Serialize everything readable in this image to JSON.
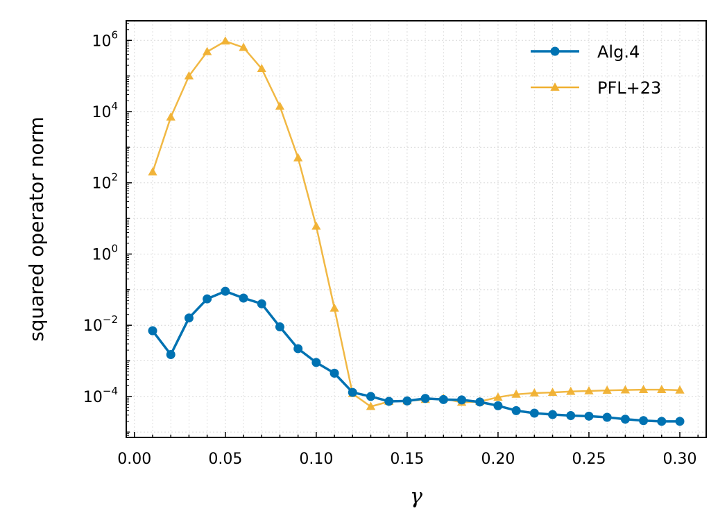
{
  "chart_data": {
    "type": "line",
    "title": "",
    "xlabel": "γ",
    "ylabel": "squared operator norm",
    "xlim": [
      -0.0045,
      0.3145
    ],
    "ylim_log10": [
      -5.15,
      6.55
    ],
    "yscale": "log",
    "x_ticks": [
      0.0,
      0.05,
      0.1,
      0.15,
      0.2,
      0.25,
      0.3
    ],
    "x_tick_labels": [
      "0.00",
      "0.05",
      "0.10",
      "0.15",
      "0.20",
      "0.25",
      "0.30"
    ],
    "y_tick_exponents": [
      -4,
      -2,
      0,
      2,
      4,
      6
    ],
    "y_tick_base": "10",
    "y_tick_exp_labels": [
      "−4",
      "−2",
      "0",
      "2",
      "4",
      "6"
    ],
    "grid": true,
    "legend_position": "top-right",
    "x": [
      0.01,
      0.02,
      0.03,
      0.04,
      0.05,
      0.06,
      0.07,
      0.08,
      0.09,
      0.1,
      0.11,
      0.12,
      0.13,
      0.14,
      0.15,
      0.16,
      0.17,
      0.18,
      0.19,
      0.2,
      0.21,
      0.22,
      0.23,
      0.24,
      0.25,
      0.26,
      0.27,
      0.28,
      0.29,
      0.3
    ],
    "series": [
      {
        "name": "Alg.4",
        "color": "#0072b2",
        "marker": "circle",
        "values": [
          0.007,
          0.0015,
          0.016,
          0.055,
          0.09,
          0.058,
          0.04,
          0.009,
          0.0022,
          0.0009,
          0.00045,
          0.00013,
          0.0001,
          7.3e-05,
          7.5e-05,
          8.8e-05,
          8.2e-05,
          8e-05,
          7e-05,
          5.5e-05,
          4e-05,
          3.4e-05,
          3.1e-05,
          2.9e-05,
          2.8e-05,
          2.6e-05,
          2.3e-05,
          2.1e-05,
          2e-05,
          2e-05
        ]
      },
      {
        "name": "PFL+23",
        "color": "#f0b030",
        "marker": "triangle",
        "values": [
          200,
          7000,
          100000,
          480000,
          950000,
          630000,
          160000,
          14000,
          500,
          6,
          0.03,
          0.00012,
          5.2e-05,
          7.2e-05,
          7.5e-05,
          8.2e-05,
          8.8e-05,
          6.8e-05,
          7.2e-05,
          9.5e-05,
          0.000115,
          0.000125,
          0.00013,
          0.000138,
          0.000143,
          0.000148,
          0.000152,
          0.000155,
          0.000155,
          0.00015
        ]
      }
    ]
  }
}
